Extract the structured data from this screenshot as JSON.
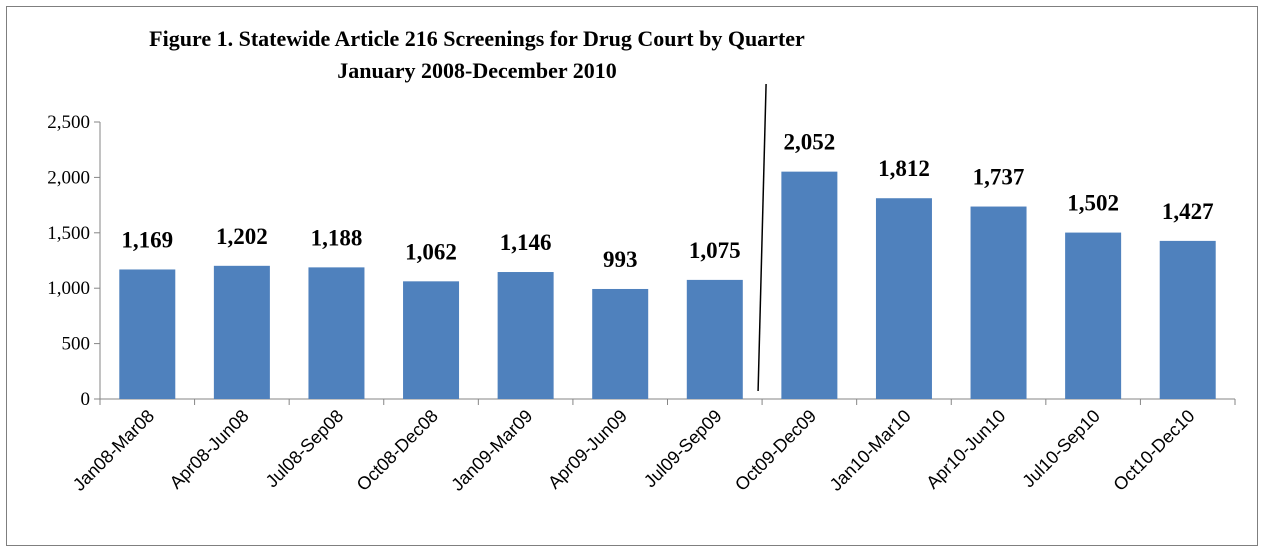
{
  "chart_data": {
    "type": "bar",
    "title": "Figure 1. Statewide Article 216 Screenings for Drug Court by Quarter",
    "subtitle": "January 2008-December 2010",
    "categories": [
      "Jan08-Mar08",
      "Apr08-Jun08",
      "Jul08-Sep08",
      "Oct08-Dec08",
      "Jan09-Mar09",
      "Apr09-Jun09",
      "Jul09-Sep09",
      "Oct09-Dec09",
      "Jan10-Mar10",
      "Apr10-Jun10",
      "Jul10-Sep10",
      "Oct10-Dec10"
    ],
    "values": [
      1169,
      1202,
      1188,
      1062,
      1146,
      993,
      1075,
      2052,
      1812,
      1737,
      1502,
      1427
    ],
    "data_labels": [
      "1,169",
      "1,202",
      "1,188",
      "1,062",
      "1,146",
      "993",
      "1,075",
      "2,052",
      "1,812",
      "1,737",
      "1,502",
      "1,427"
    ],
    "y_ticks": [
      0,
      500,
      1000,
      1500,
      2000,
      2500
    ],
    "y_tick_labels": [
      "0",
      "500",
      "1,000",
      "1,500",
      "2,000",
      "2,500"
    ],
    "ylim": [
      0,
      2500
    ],
    "xlabel": "",
    "ylabel": "",
    "grid": false,
    "legend": "none",
    "bar_color": "#4f81bd",
    "divider_between_categories": [
      "Jul09-Sep09",
      "Oct09-Dec09"
    ]
  }
}
